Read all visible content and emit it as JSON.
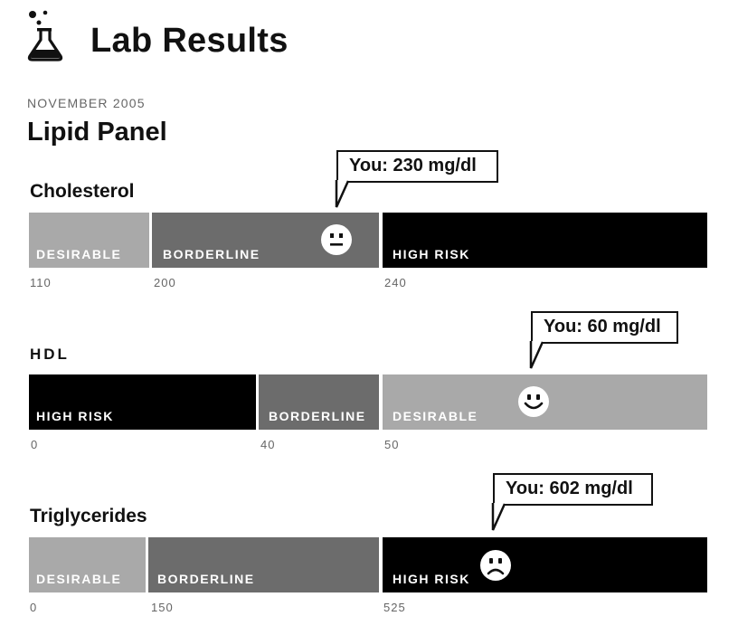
{
  "header": {
    "title": "Lab Results",
    "icon": "flask-icon"
  },
  "report": {
    "date": "NOVEMBER 2005",
    "panel_title": "Lipid Panel"
  },
  "colors": {
    "desirable": "#a9a9a9",
    "borderline": "#6c6c6c",
    "high_risk": "#000000"
  },
  "tests": {
    "cholesterol": {
      "label": "Cholesterol",
      "result": "You: 230 mg/dl",
      "status_icon": "neutral-face-icon",
      "segments": [
        "DESIRABLE",
        "BORDERLINE",
        "HIGH RISK"
      ],
      "ticks": [
        "110",
        "200",
        "240"
      ]
    },
    "hdl": {
      "label": "HDL",
      "result": "You: 60 mg/dl",
      "status_icon": "smiley-face-icon",
      "segments": [
        "HIGH RISK",
        "BORDERLINE",
        "DESIRABLE"
      ],
      "ticks": [
        "0",
        "40",
        "50"
      ]
    },
    "triglycerides": {
      "label": "Triglycerides",
      "result": "You: 602 mg/dl",
      "status_icon": "frown-face-icon",
      "segments": [
        "DESIRABLE",
        "BORDERLINE",
        "HIGH RISK"
      ],
      "ticks": [
        "0",
        "150",
        "525"
      ]
    }
  }
}
